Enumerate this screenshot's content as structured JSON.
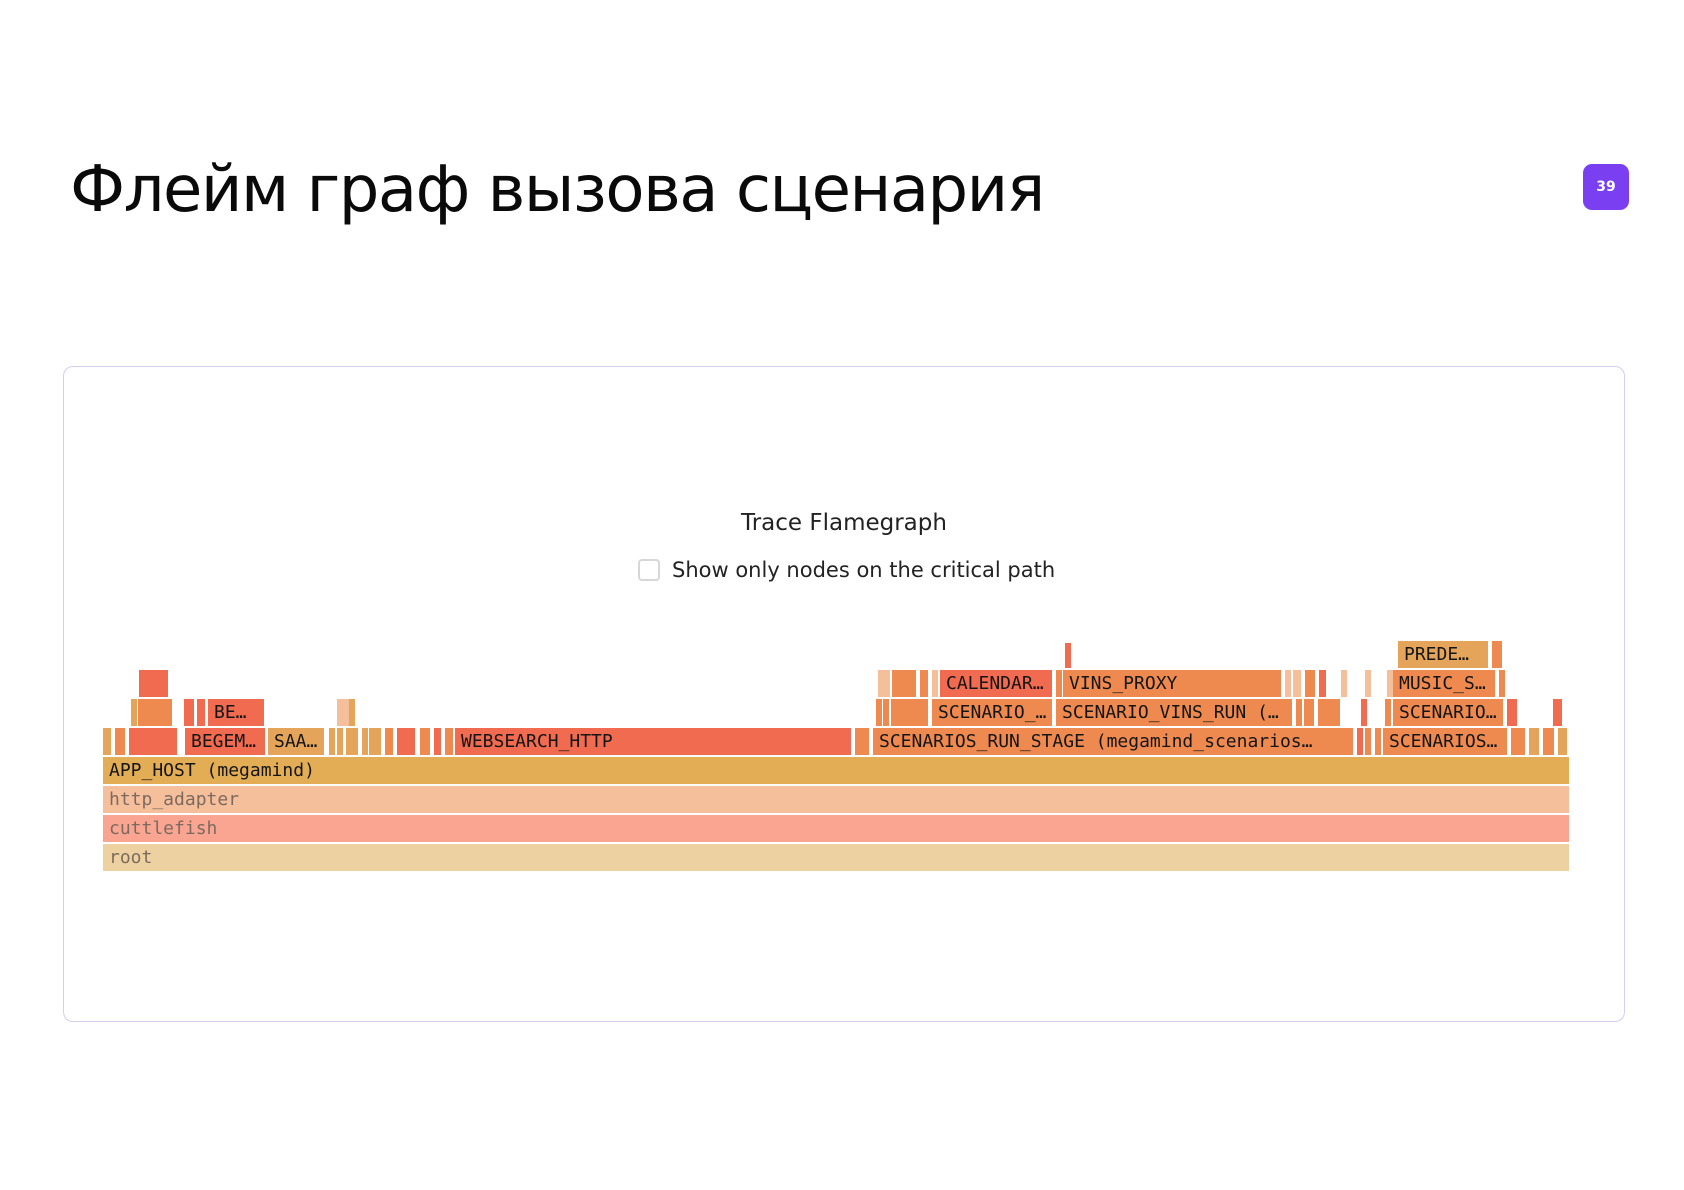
{
  "slide": {
    "title": "Флейм граф вызова сценария",
    "page_number": "39"
  },
  "flamegraph": {
    "title": "Trace Flamegraph",
    "critical_path_toggle": {
      "label": "Show only nodes on the critical path",
      "checked": false
    },
    "colors": {
      "root": "#eed1a0",
      "cuttlefish": "#f9a592",
      "http_adapter": "#f5bf9c",
      "app_host": "#e3ad56",
      "hot": "#f06b4f",
      "warm": "#ee8a50",
      "amber": "#e4a55a"
    },
    "frames": {
      "root": "root",
      "cuttlefish": "cuttlefish",
      "http_adapter": "http_adapter",
      "app_host": "APP_HOST (megamind)",
      "begem": "BEGEM…",
      "saa": "SAA…",
      "websearch": "WEBSEARCH_HTTP",
      "scenarios_run_stage": "SCENARIOS_RUN_STAGE (megamind_scenarios…",
      "scenarios_right": "SCENARIOS…",
      "be": "BE…",
      "scenario_short": "SCENARIO_…",
      "scenario_vins_run": "SCENARIO_VINS_RUN (…",
      "scenario_right": "SCENARIO…",
      "calendar": "CALENDAR…",
      "vins_proxy": "VINS_PROXY",
      "music": "MUSIC_S…",
      "prede": "PREDE…"
    }
  }
}
